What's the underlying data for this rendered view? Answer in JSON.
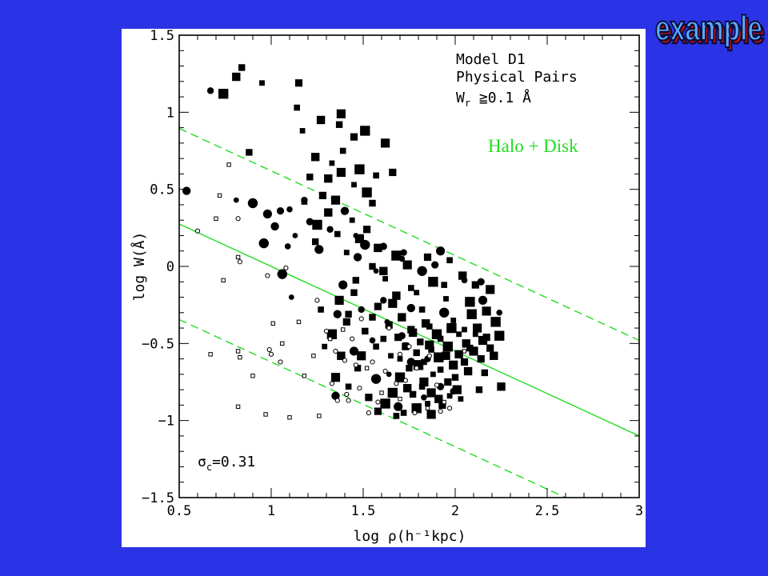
{
  "slide": {
    "corner_title": "example",
    "background": "#2b33e6",
    "corner_title_color": "#5aa8ff",
    "corner_title_shadow": "#cc1111"
  },
  "chart_data": {
    "type": "scatter",
    "xlabel": "log ρ(h⁻¹kpc)",
    "ylabel": "log W(Å)",
    "xlim": [
      0.5,
      3
    ],
    "ylim": [
      -1.5,
      1.5
    ],
    "x_ticks": [
      "0.5",
      "1",
      "1.5",
      "2",
      "2.5",
      "3"
    ],
    "y_ticks": [
      "−1.5",
      "−1",
      "−0.5",
      "0",
      "0.5",
      "1",
      "1.5"
    ],
    "annotation_lines": [
      "Model D1",
      "Physical Pairs",
      "W_r ≥0.1 Å"
    ],
    "annotation": {
      "line1": "Model D1",
      "line2": "Physical Pairs",
      "line3_main": "W",
      "line3_sub": "r",
      "line3_rest": " ≧0.1 Å"
    },
    "halo_label": "Halo + Disk",
    "halo_label_color": "#22dd22",
    "sigma_label": {
      "symbol": "σ",
      "sub": "c",
      "value": "=0.31"
    },
    "fit": {
      "intercept": 0.55,
      "slope": -0.55,
      "sigma": 0.62,
      "color": "#22dd22"
    },
    "series": [
      {
        "marker": "filled-square",
        "points": [
          [
            0.84,
            1.29
          ],
          [
            0.81,
            1.23
          ],
          [
            0.95,
            1.19
          ],
          [
            0.74,
            1.12
          ],
          [
            1.15,
            1.19
          ],
          [
            1.14,
            1.03
          ],
          [
            1.38,
            0.99
          ],
          [
            1.37,
            0.92
          ],
          [
            1.27,
            0.95
          ],
          [
            1.17,
            0.88
          ],
          [
            1.51,
            0.88
          ],
          [
            1.45,
            0.84
          ],
          [
            1.39,
            0.75
          ],
          [
            1.62,
            0.8
          ],
          [
            0.88,
            0.74
          ],
          [
            1.24,
            0.71
          ],
          [
            1.33,
            0.67
          ],
          [
            1.48,
            0.63
          ],
          [
            1.66,
            0.61
          ],
          [
            1.57,
            0.59
          ],
          [
            1.38,
            0.61
          ],
          [
            1.21,
            0.58
          ],
          [
            1.31,
            0.57
          ],
          [
            1.45,
            0.53
          ],
          [
            1.52,
            0.48
          ],
          [
            1.28,
            0.46
          ],
          [
            1.18,
            0.42
          ],
          [
            1.35,
            0.43
          ],
          [
            1.55,
            0.41
          ],
          [
            1.31,
            0.35
          ],
          [
            1.44,
            0.3
          ],
          [
            1.25,
            0.27
          ],
          [
            1.52,
            0.24
          ],
          [
            1.36,
            0.21
          ],
          [
            1.48,
            0.18
          ],
          [
            1.24,
            0.16
          ],
          [
            1.58,
            0.12
          ],
          [
            1.41,
            0.09
          ],
          [
            1.68,
            0.07
          ],
          [
            1.85,
            0.06
          ],
          [
            1.97,
            0.04
          ],
          [
            1.74,
            0.01
          ],
          [
            1.55,
            0.0
          ],
          [
            2.04,
            -0.06
          ],
          [
            1.62,
            -0.08
          ],
          [
            1.88,
            -0.1
          ],
          [
            2.11,
            -0.12
          ],
          [
            1.76,
            -0.14
          ],
          [
            2.19,
            -0.15
          ],
          [
            1.45,
            -0.17
          ],
          [
            1.68,
            -0.19
          ],
          [
            1.95,
            -0.21
          ],
          [
            2.08,
            -0.23
          ],
          [
            1.58,
            -0.26
          ],
          [
            1.82,
            -0.28
          ],
          [
            2.17,
            -0.29
          ],
          [
            1.42,
            -0.31
          ],
          [
            1.71,
            -0.33
          ],
          [
            1.99,
            -0.35
          ],
          [
            2.22,
            -0.36
          ],
          [
            1.64,
            -0.38
          ],
          [
            1.86,
            -0.39
          ],
          [
            2.12,
            -0.4
          ],
          [
            1.51,
            -0.42
          ],
          [
            1.77,
            -0.43
          ],
          [
            2.02,
            -0.44
          ],
          [
            2.24,
            -0.45
          ],
          [
            1.69,
            -0.46
          ],
          [
            1.92,
            -0.47
          ],
          [
            2.15,
            -0.48
          ],
          [
            1.81,
            -0.49
          ],
          [
            2.06,
            -0.5
          ],
          [
            1.73,
            -0.51
          ],
          [
            1.96,
            -0.52
          ],
          [
            2.19,
            -0.53
          ],
          [
            1.87,
            -0.54
          ],
          [
            2.1,
            -0.55
          ],
          [
            1.79,
            -0.56
          ],
          [
            2.02,
            -0.57
          ],
          [
            1.65,
            -0.58
          ],
          [
            1.91,
            -0.59
          ],
          [
            2.14,
            -0.6
          ],
          [
            1.83,
            -0.62
          ],
          [
            1.99,
            -0.64
          ],
          [
            1.75,
            -0.66
          ],
          [
            2.07,
            -0.68
          ],
          [
            1.88,
            -0.7
          ],
          [
            1.7,
            -0.72
          ],
          [
            1.96,
            -0.75
          ],
          [
            1.82,
            -0.78
          ],
          [
            2.01,
            -0.8
          ],
          [
            1.77,
            -0.83
          ],
          [
            1.91,
            -0.86
          ],
          [
            1.85,
            -0.89
          ],
          [
            1.79,
            -0.92
          ],
          [
            1.93,
            -0.9
          ],
          [
            1.72,
            -0.95
          ],
          [
            1.87,
            -0.96
          ],
          [
            2.13,
            -0.8
          ],
          [
            2.25,
            -0.78
          ],
          [
            2.03,
            -0.86
          ],
          [
            1.62,
            -0.89
          ],
          [
            1.53,
            -0.85
          ],
          [
            1.42,
            -0.78
          ],
          [
            1.35,
            -0.72
          ],
          [
            1.47,
            -0.66
          ],
          [
            1.38,
            -0.58
          ],
          [
            1.29,
            -0.52
          ],
          [
            1.33,
            -0.44
          ],
          [
            1.41,
            -0.36
          ],
          [
            1.27,
            -0.28
          ],
          [
            1.37,
            -0.22
          ],
          [
            1.46,
            -0.09
          ],
          [
            1.61,
            -0.03
          ],
          [
            1.79,
            -0.17
          ],
          [
            2.09,
            -0.31
          ],
          [
            2.17,
            -0.46
          ],
          [
            1.94,
            -0.12
          ],
          [
            1.66,
            -0.24
          ],
          [
            1.55,
            -0.33
          ],
          [
            1.84,
            -0.37
          ],
          [
            2.05,
            -0.41
          ],
          [
            1.9,
            -0.44
          ],
          [
            1.76,
            -0.41
          ],
          [
            1.61,
            -0.47
          ],
          [
            1.86,
            -0.51
          ],
          [
            2.08,
            -0.53
          ],
          [
            1.95,
            -0.58
          ],
          [
            1.7,
            -0.6
          ],
          [
            1.8,
            -0.64
          ],
          [
            2.05,
            -0.62
          ],
          [
            1.92,
            -0.67
          ],
          [
            1.83,
            -0.75
          ],
          [
            2.0,
            -0.72
          ],
          [
            1.74,
            -0.79
          ],
          [
            1.97,
            -0.84
          ],
          [
            1.66,
            -0.82
          ],
          [
            1.58,
            -0.94
          ],
          [
            1.68,
            -0.97
          ],
          [
            1.87,
            -0.82
          ],
          [
            2.16,
            -0.69
          ],
          [
            2.21,
            -0.58
          ],
          [
            2.11,
            -0.44
          ],
          [
            1.98,
            -0.4
          ],
          [
            1.73,
            -0.52
          ],
          [
            1.57,
            -0.52
          ],
          [
            1.49,
            -0.58
          ]
        ]
      },
      {
        "marker": "filled-circle",
        "points": [
          [
            0.67,
            1.14
          ],
          [
            0.54,
            0.49
          ],
          [
            0.81,
            0.43
          ],
          [
            0.9,
            0.41
          ],
          [
            1.05,
            0.36
          ],
          [
            1.1,
            0.37
          ],
          [
            0.98,
            0.34
          ],
          [
            1.18,
            0.43
          ],
          [
            1.02,
            0.26
          ],
          [
            1.13,
            0.2
          ],
          [
            0.96,
            0.15
          ],
          [
            1.21,
            0.29
          ],
          [
            1.09,
            0.13
          ],
          [
            1.26,
            0.11
          ],
          [
            1.32,
            0.24
          ],
          [
            1.4,
            0.36
          ],
          [
            1.46,
            0.2
          ],
          [
            1.51,
            0.14
          ],
          [
            1.61,
            0.13
          ],
          [
            1.71,
            0.05
          ],
          [
            1.92,
            0.1
          ],
          [
            1.72,
            0.09
          ],
          [
            1.47,
            0.06
          ],
          [
            1.57,
            -0.03
          ],
          [
            1.82,
            -0.03
          ],
          [
            1.89,
            0.01
          ],
          [
            2.05,
            -0.09
          ],
          [
            2.15,
            -0.22
          ],
          [
            1.49,
            -0.28
          ],
          [
            1.36,
            -0.31
          ],
          [
            1.63,
            -0.36
          ],
          [
            1.94,
            -0.3
          ],
          [
            1.71,
            -0.45
          ],
          [
            1.55,
            -0.48
          ],
          [
            1.45,
            -0.55
          ],
          [
            1.85,
            -0.6
          ],
          [
            1.76,
            -0.62
          ],
          [
            1.64,
            -0.7
          ],
          [
            1.57,
            -0.73
          ],
          [
            1.92,
            -0.78
          ],
          [
            1.83,
            -0.85
          ],
          [
            1.69,
            -0.91
          ],
          [
            1.99,
            -0.81
          ],
          [
            1.35,
            -0.84
          ],
          [
            1.11,
            -0.2
          ],
          [
            1.06,
            -0.05
          ],
          [
            2.14,
            -0.1
          ],
          [
            2.24,
            -0.3
          ],
          [
            1.39,
            -0.12
          ],
          [
            1.61,
            -0.22
          ],
          [
            1.76,
            -0.27
          ]
        ]
      },
      {
        "marker": "open-square",
        "points": [
          [
            0.77,
            0.66
          ],
          [
            0.72,
            0.46
          ],
          [
            0.7,
            0.31
          ],
          [
            0.82,
            0.06
          ],
          [
            0.74,
            -0.09
          ],
          [
            1.01,
            -0.37
          ],
          [
            1.06,
            -0.5
          ],
          [
            0.82,
            -0.55
          ],
          [
            0.83,
            -0.59
          ],
          [
            0.67,
            -0.57
          ],
          [
            0.9,
            -0.71
          ],
          [
            1.18,
            -0.71
          ],
          [
            0.82,
            -0.91
          ],
          [
            0.97,
            -0.96
          ],
          [
            1.1,
            -0.98
          ],
          [
            1.26,
            -0.97
          ],
          [
            1.23,
            -0.58
          ],
          [
            1.39,
            -0.41
          ],
          [
            1.52,
            -0.66
          ],
          [
            1.6,
            -0.82
          ],
          [
            1.7,
            -0.86
          ],
          [
            1.85,
            -0.92
          ],
          [
            1.94,
            -0.88
          ],
          [
            2.05,
            -0.55
          ],
          [
            1.15,
            -0.36
          ],
          [
            1.32,
            -0.47
          ]
        ]
      },
      {
        "marker": "open-circle",
        "points": [
          [
            0.6,
            0.23
          ],
          [
            0.82,
            0.31
          ],
          [
            0.83,
            0.03
          ],
          [
            0.98,
            -0.06
          ],
          [
            1.08,
            -0.01
          ],
          [
            1.25,
            -0.22
          ],
          [
            1.4,
            -0.61
          ],
          [
            1.41,
            -0.83
          ],
          [
            1.33,
            -0.76
          ],
          [
            1.36,
            -0.87
          ],
          [
            1.42,
            -0.87
          ],
          [
            1.46,
            -0.64
          ],
          [
            1.44,
            -0.47
          ],
          [
            1.3,
            -0.42
          ],
          [
            1.35,
            -0.55
          ],
          [
            1.48,
            -0.79
          ],
          [
            1.55,
            -0.62
          ],
          [
            1.62,
            -0.68
          ],
          [
            1.58,
            -0.88
          ],
          [
            1.68,
            -0.76
          ],
          [
            1.73,
            -0.74
          ],
          [
            1.79,
            -0.66
          ],
          [
            1.9,
            -0.77
          ],
          [
            1.86,
            -0.58
          ],
          [
            1.97,
            -0.92
          ],
          [
            1.75,
            -0.52
          ],
          [
            1.64,
            -0.4
          ],
          [
            1.7,
            -0.57
          ],
          [
            1.49,
            -0.34
          ],
          [
            1.0,
            -0.57
          ],
          [
            0.99,
            -0.54
          ],
          [
            1.05,
            -0.62
          ],
          [
            1.53,
            -0.95
          ],
          [
            1.78,
            -0.95
          ],
          [
            1.92,
            -0.94
          ]
        ]
      }
    ]
  }
}
